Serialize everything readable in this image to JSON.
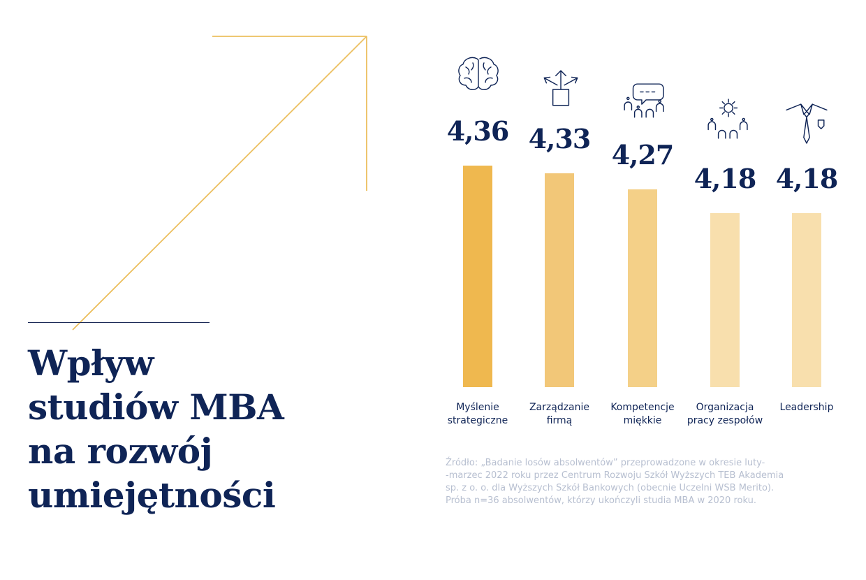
{
  "title_lines": [
    "Wpływ",
    "studiów MBA",
    "na rozwój",
    "umiejętności"
  ],
  "colors": {
    "navy": "#0f2456",
    "arrow": "#ecbf5e",
    "source": "#b7bfd0",
    "bars": [
      "#efb84f",
      "#f2c778",
      "#f4d088",
      "#f8dfad",
      "#f8dfad"
    ]
  },
  "chart_data": {
    "type": "bar",
    "categories": [
      "Myślenie strategiczne",
      "Zarządzanie firmą",
      "Kompetencje miękkie",
      "Organizacja pracy zespołów",
      "Leadership"
    ],
    "category_lines": [
      [
        "Myślenie",
        "strategiczne"
      ],
      [
        "Zarządzanie",
        "firmą"
      ],
      [
        "Kompetencje",
        "miękkie"
      ],
      [
        "Organizacja",
        "pracy zespołów"
      ],
      [
        "Leadership"
      ]
    ],
    "values": [
      4.36,
      4.33,
      4.27,
      4.18,
      4.18
    ],
    "value_labels": [
      "4,36",
      "4,33",
      "4,27",
      "4,18",
      "4,18"
    ],
    "icons": [
      "brain-icon",
      "box-arrows-icon",
      "speech-group-icon",
      "gear-team-icon",
      "tie-icon"
    ],
    "title": "Wpływ studiów MBA na rozwój umiejętności",
    "xlabel": "",
    "ylabel": "",
    "grid": false,
    "legend": "none"
  },
  "source_lines": [
    "Źródło: „Badanie losów absolwentów” przeprowadzone w okresie luty-",
    "-marzec 2022 roku przez Centrum Rozwoju Szkół Wyższych TEB Akademia",
    "sp. z o. o. dla Wyższych Szkół Bankowych (obecnie Uczelni WSB Merito).",
    "Próba n=36 absolwentów, którzy ukończyli studia MBA w 2020 roku."
  ]
}
